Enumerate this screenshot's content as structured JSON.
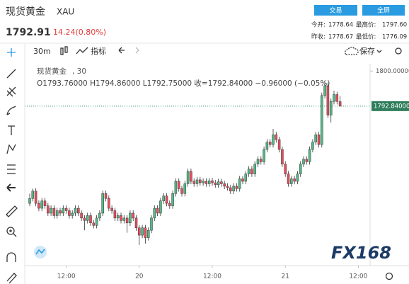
{
  "header": {
    "title": "现货黄金",
    "symbol": "XAU",
    "price": "1792.91",
    "change": "14.24(0.80%)",
    "buttons": [
      "交易",
      "全屏"
    ],
    "stats": [
      [
        "今开:",
        "1778.64",
        "最高价:",
        "1797.60"
      ],
      [
        "昨收:",
        "1778.67",
        "最低价:",
        "1776.09"
      ]
    ]
  },
  "toolbar": {
    "interval": "30m",
    "indicators": "指标",
    "save": "保存"
  },
  "legend": {
    "name": "现货黄金",
    "interval": ", 30",
    "values": "O1793.76000  H1794.86000  L1792.75000  收=1792.84000  −0.96000 (−0.05%)"
  },
  "watermark": "FX168",
  "chart_data": {
    "type": "candlestick",
    "up_color": "#53b987",
    "down_color": "#eb4d5c",
    "ylim": [
      1760.3,
      1801.2
    ],
    "yticks": [
      {
        "value": 1800,
        "label": "1800.00000"
      }
    ],
    "last_price": {
      "value": 1792.84,
      "label": "1792.84000"
    },
    "xlim": [
      -1.63,
      111.86
    ],
    "xticks": [
      {
        "value": 12,
        "label": "12:00"
      },
      {
        "value": 36,
        "label": "20"
      },
      {
        "value": 60,
        "label": "12:00"
      },
      {
        "value": 84,
        "label": "21"
      },
      {
        "value": 108,
        "label": "12:00"
      }
    ],
    "ohlc": [
      [
        1773,
        1775,
        1772.4,
        1774
      ],
      [
        1774,
        1776,
        1773.4,
        1775.5
      ],
      [
        1775.5,
        1776.1,
        1772.4,
        1773
      ],
      [
        1773,
        1773.6,
        1771.4,
        1772
      ],
      [
        1772,
        1774.1,
        1771.4,
        1773.5
      ],
      [
        1773.5,
        1774.1,
        1771.9,
        1772.5
      ],
      [
        1772.5,
        1773.1,
        1770.4,
        1771
      ],
      [
        1771,
        1772.6,
        1770.4,
        1772
      ],
      [
        1772,
        1772.6,
        1769.9,
        1770.5
      ],
      [
        1770.5,
        1772.1,
        1769.9,
        1771.5
      ],
      [
        1771.5,
        1772.1,
        1770.4,
        1771
      ],
      [
        1771,
        1772.6,
        1770.4,
        1772
      ],
      [
        1772,
        1772.6,
        1770.9,
        1771.5
      ],
      [
        1771.5,
        1772.1,
        1769.9,
        1770.5
      ],
      [
        1770.5,
        1771.6,
        1769.9,
        1771
      ],
      [
        1771,
        1772.6,
        1770.4,
        1772
      ],
      [
        1772,
        1772.6,
        1770.4,
        1771
      ],
      [
        1771,
        1771.6,
        1769.4,
        1770
      ],
      [
        1770,
        1770.6,
        1767.5,
        1769.5
      ],
      [
        1769.5,
        1771.1,
        1768.9,
        1770.5
      ],
      [
        1770.5,
        1771.1,
        1768.4,
        1769
      ],
      [
        1769,
        1769.6,
        1767.9,
        1768.5
      ],
      [
        1768.5,
        1770.6,
        1767.9,
        1770
      ],
      [
        1770,
        1771.6,
        1769.4,
        1771
      ],
      [
        1771,
        1775.6,
        1770.4,
        1775
      ],
      [
        1775,
        1775.6,
        1773.4,
        1774
      ],
      [
        1774,
        1774.6,
        1771.4,
        1772
      ],
      [
        1772,
        1772.6,
        1770.9,
        1771.5
      ],
      [
        1771.5,
        1772.1,
        1769.4,
        1770
      ],
      [
        1770,
        1771.1,
        1769.4,
        1770.5
      ],
      [
        1770.5,
        1771.1,
        1768.9,
        1769.5
      ],
      [
        1769.5,
        1770.6,
        1768.9,
        1770
      ],
      [
        1770,
        1770.6,
        1767,
        1769
      ],
      [
        1769,
        1771.6,
        1768.4,
        1771
      ],
      [
        1771,
        1771.6,
        1769.4,
        1770
      ],
      [
        1770,
        1770.6,
        1767.4,
        1768
      ],
      [
        1768,
        1768.6,
        1764.5,
        1766.5
      ],
      [
        1766.5,
        1768.6,
        1765.9,
        1768
      ],
      [
        1768,
        1768.6,
        1764.8,
        1766
      ],
      [
        1766,
        1768.1,
        1765.4,
        1767.5
      ],
      [
        1767.5,
        1770.6,
        1766.9,
        1770
      ],
      [
        1770,
        1772.6,
        1769.4,
        1772
      ],
      [
        1772,
        1772.6,
        1770.4,
        1771
      ],
      [
        1771,
        1774.1,
        1770.4,
        1773.5
      ],
      [
        1773.5,
        1775.1,
        1772.9,
        1774.5
      ],
      [
        1774.5,
        1775.1,
        1772.4,
        1773
      ],
      [
        1773,
        1773.6,
        1771.9,
        1772.5
      ],
      [
        1772.5,
        1775.6,
        1771.9,
        1775
      ],
      [
        1775,
        1778.1,
        1774.4,
        1777.5
      ],
      [
        1777.5,
        1778.1,
        1775.4,
        1776
      ],
      [
        1776,
        1776.6,
        1774.4,
        1775
      ],
      [
        1775,
        1777.6,
        1774.4,
        1777
      ],
      [
        1777,
        1780.1,
        1776.4,
        1779.5
      ],
      [
        1779.5,
        1780.1,
        1776.9,
        1777.5
      ],
      [
        1777.5,
        1778.1,
        1776.4,
        1777
      ],
      [
        1777,
        1778.4,
        1776.4,
        1777.8
      ],
      [
        1777.8,
        1778.4,
        1776.6,
        1777.2
      ],
      [
        1777.2,
        1778.1,
        1776.6,
        1777.5
      ],
      [
        1777.5,
        1778.1,
        1776.4,
        1777
      ],
      [
        1777,
        1778.2,
        1776.4,
        1777.6
      ],
      [
        1777.6,
        1778.2,
        1776.6,
        1777.2
      ],
      [
        1777.2,
        1777.8,
        1776.2,
        1776.8
      ],
      [
        1776.8,
        1778,
        1776.2,
        1777.4
      ],
      [
        1777.4,
        1778,
        1776.4,
        1777
      ],
      [
        1777,
        1777.6,
        1775.9,
        1776.5
      ],
      [
        1776.5,
        1777.1,
        1775.6,
        1776.2
      ],
      [
        1776.2,
        1776.8,
        1774.9,
        1775.5
      ],
      [
        1775.5,
        1777.1,
        1774.9,
        1776.5
      ],
      [
        1776.5,
        1777.1,
        1775.4,
        1776
      ],
      [
        1776,
        1778.6,
        1775.4,
        1778
      ],
      [
        1778,
        1778.6,
        1776.9,
        1777.5
      ],
      [
        1777.5,
        1779.6,
        1776.9,
        1779
      ],
      [
        1779,
        1780.6,
        1778.4,
        1780
      ],
      [
        1780,
        1780.6,
        1778.4,
        1779
      ],
      [
        1779,
        1781.6,
        1778.4,
        1781
      ],
      [
        1781,
        1782.6,
        1780.4,
        1782
      ],
      [
        1782,
        1782.6,
        1780.9,
        1781.5
      ],
      [
        1781.5,
        1784.6,
        1780.9,
        1784
      ],
      [
        1784,
        1786.1,
        1783.4,
        1785.5
      ],
      [
        1785.5,
        1786.1,
        1784.4,
        1785
      ],
      [
        1785,
        1788.2,
        1784.4,
        1787
      ],
      [
        1787,
        1787.6,
        1785.4,
        1786
      ],
      [
        1786,
        1786.6,
        1783.4,
        1784
      ],
      [
        1784,
        1784.6,
        1780.4,
        1781
      ],
      [
        1781,
        1781.6,
        1778.4,
        1779
      ],
      [
        1779,
        1779.6,
        1776.4,
        1777
      ],
      [
        1777,
        1778.6,
        1776.4,
        1778
      ],
      [
        1778,
        1778.6,
        1776.9,
        1777.5
      ],
      [
        1777.5,
        1779.6,
        1776.9,
        1779
      ],
      [
        1779,
        1781.6,
        1778.4,
        1781
      ],
      [
        1781,
        1782.6,
        1780.4,
        1782
      ],
      [
        1782,
        1782.6,
        1780.9,
        1781.5
      ],
      [
        1781.5,
        1784.6,
        1780.9,
        1784
      ],
      [
        1784,
        1786.1,
        1783.4,
        1785.5
      ],
      [
        1785.5,
        1787.6,
        1784.9,
        1787
      ],
      [
        1787,
        1787.6,
        1784.4,
        1785
      ],
      [
        1785,
        1795.6,
        1784.4,
        1795
      ],
      [
        1795,
        1797.8,
        1794.4,
        1797
      ],
      [
        1797,
        1797.6,
        1790.4,
        1791
      ],
      [
        1791,
        1794.4,
        1789.5,
        1793.8
      ],
      [
        1793.8,
        1796,
        1793.2,
        1795.2
      ],
      [
        1795.2,
        1795.8,
        1793.2,
        1793.8
      ],
      [
        1793.76,
        1794.86,
        1792.75,
        1792.84
      ]
    ]
  }
}
